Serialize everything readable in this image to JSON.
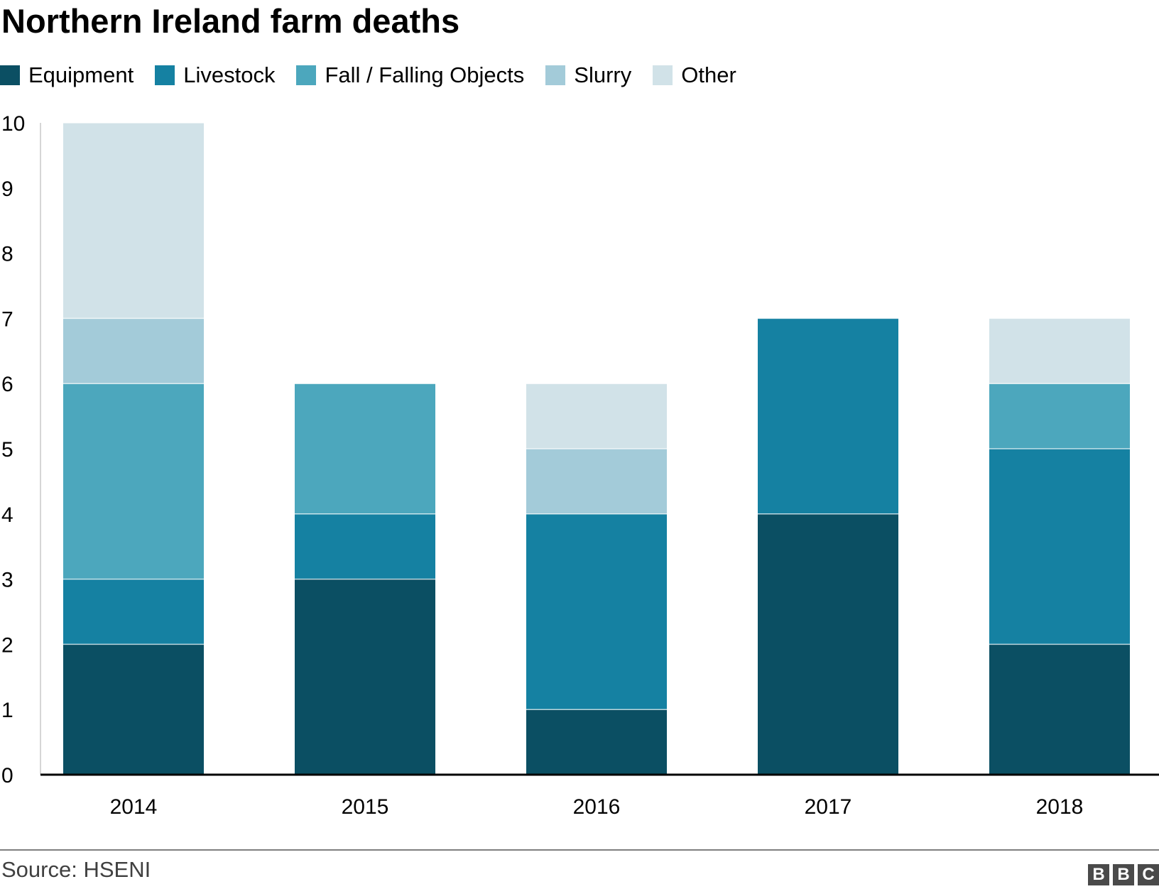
{
  "chart_data": {
    "type": "bar",
    "stacked": true,
    "title": "Northern Ireland farm deaths",
    "categories": [
      "2014",
      "2015",
      "2016",
      "2017",
      "2018"
    ],
    "series": [
      {
        "name": "Equipment",
        "color": "#0b4f63",
        "values": [
          2,
          3,
          1,
          4,
          2
        ]
      },
      {
        "name": "Livestock",
        "color": "#1581a2",
        "values": [
          1,
          1,
          3,
          3,
          3
        ]
      },
      {
        "name": "Fall / Falling Objects",
        "color": "#4ca7bd",
        "values": [
          3,
          2,
          0,
          0,
          1
        ]
      },
      {
        "name": "Slurry",
        "color": "#a3cbd9",
        "values": [
          1,
          0,
          1,
          0,
          0
        ]
      },
      {
        "name": "Other",
        "color": "#d1e2e8",
        "values": [
          3,
          0,
          1,
          0,
          1
        ]
      }
    ],
    "ylim": [
      0,
      10
    ],
    "yticks": [
      "0",
      "1",
      "2",
      "3",
      "4",
      "5",
      "6",
      "7",
      "8",
      "9",
      "10"
    ],
    "xlabel": "",
    "ylabel": "",
    "grid": false,
    "legend_position": "top-left"
  },
  "footer": {
    "source": "Source: HSENI",
    "logo": [
      "B",
      "B",
      "C"
    ]
  }
}
